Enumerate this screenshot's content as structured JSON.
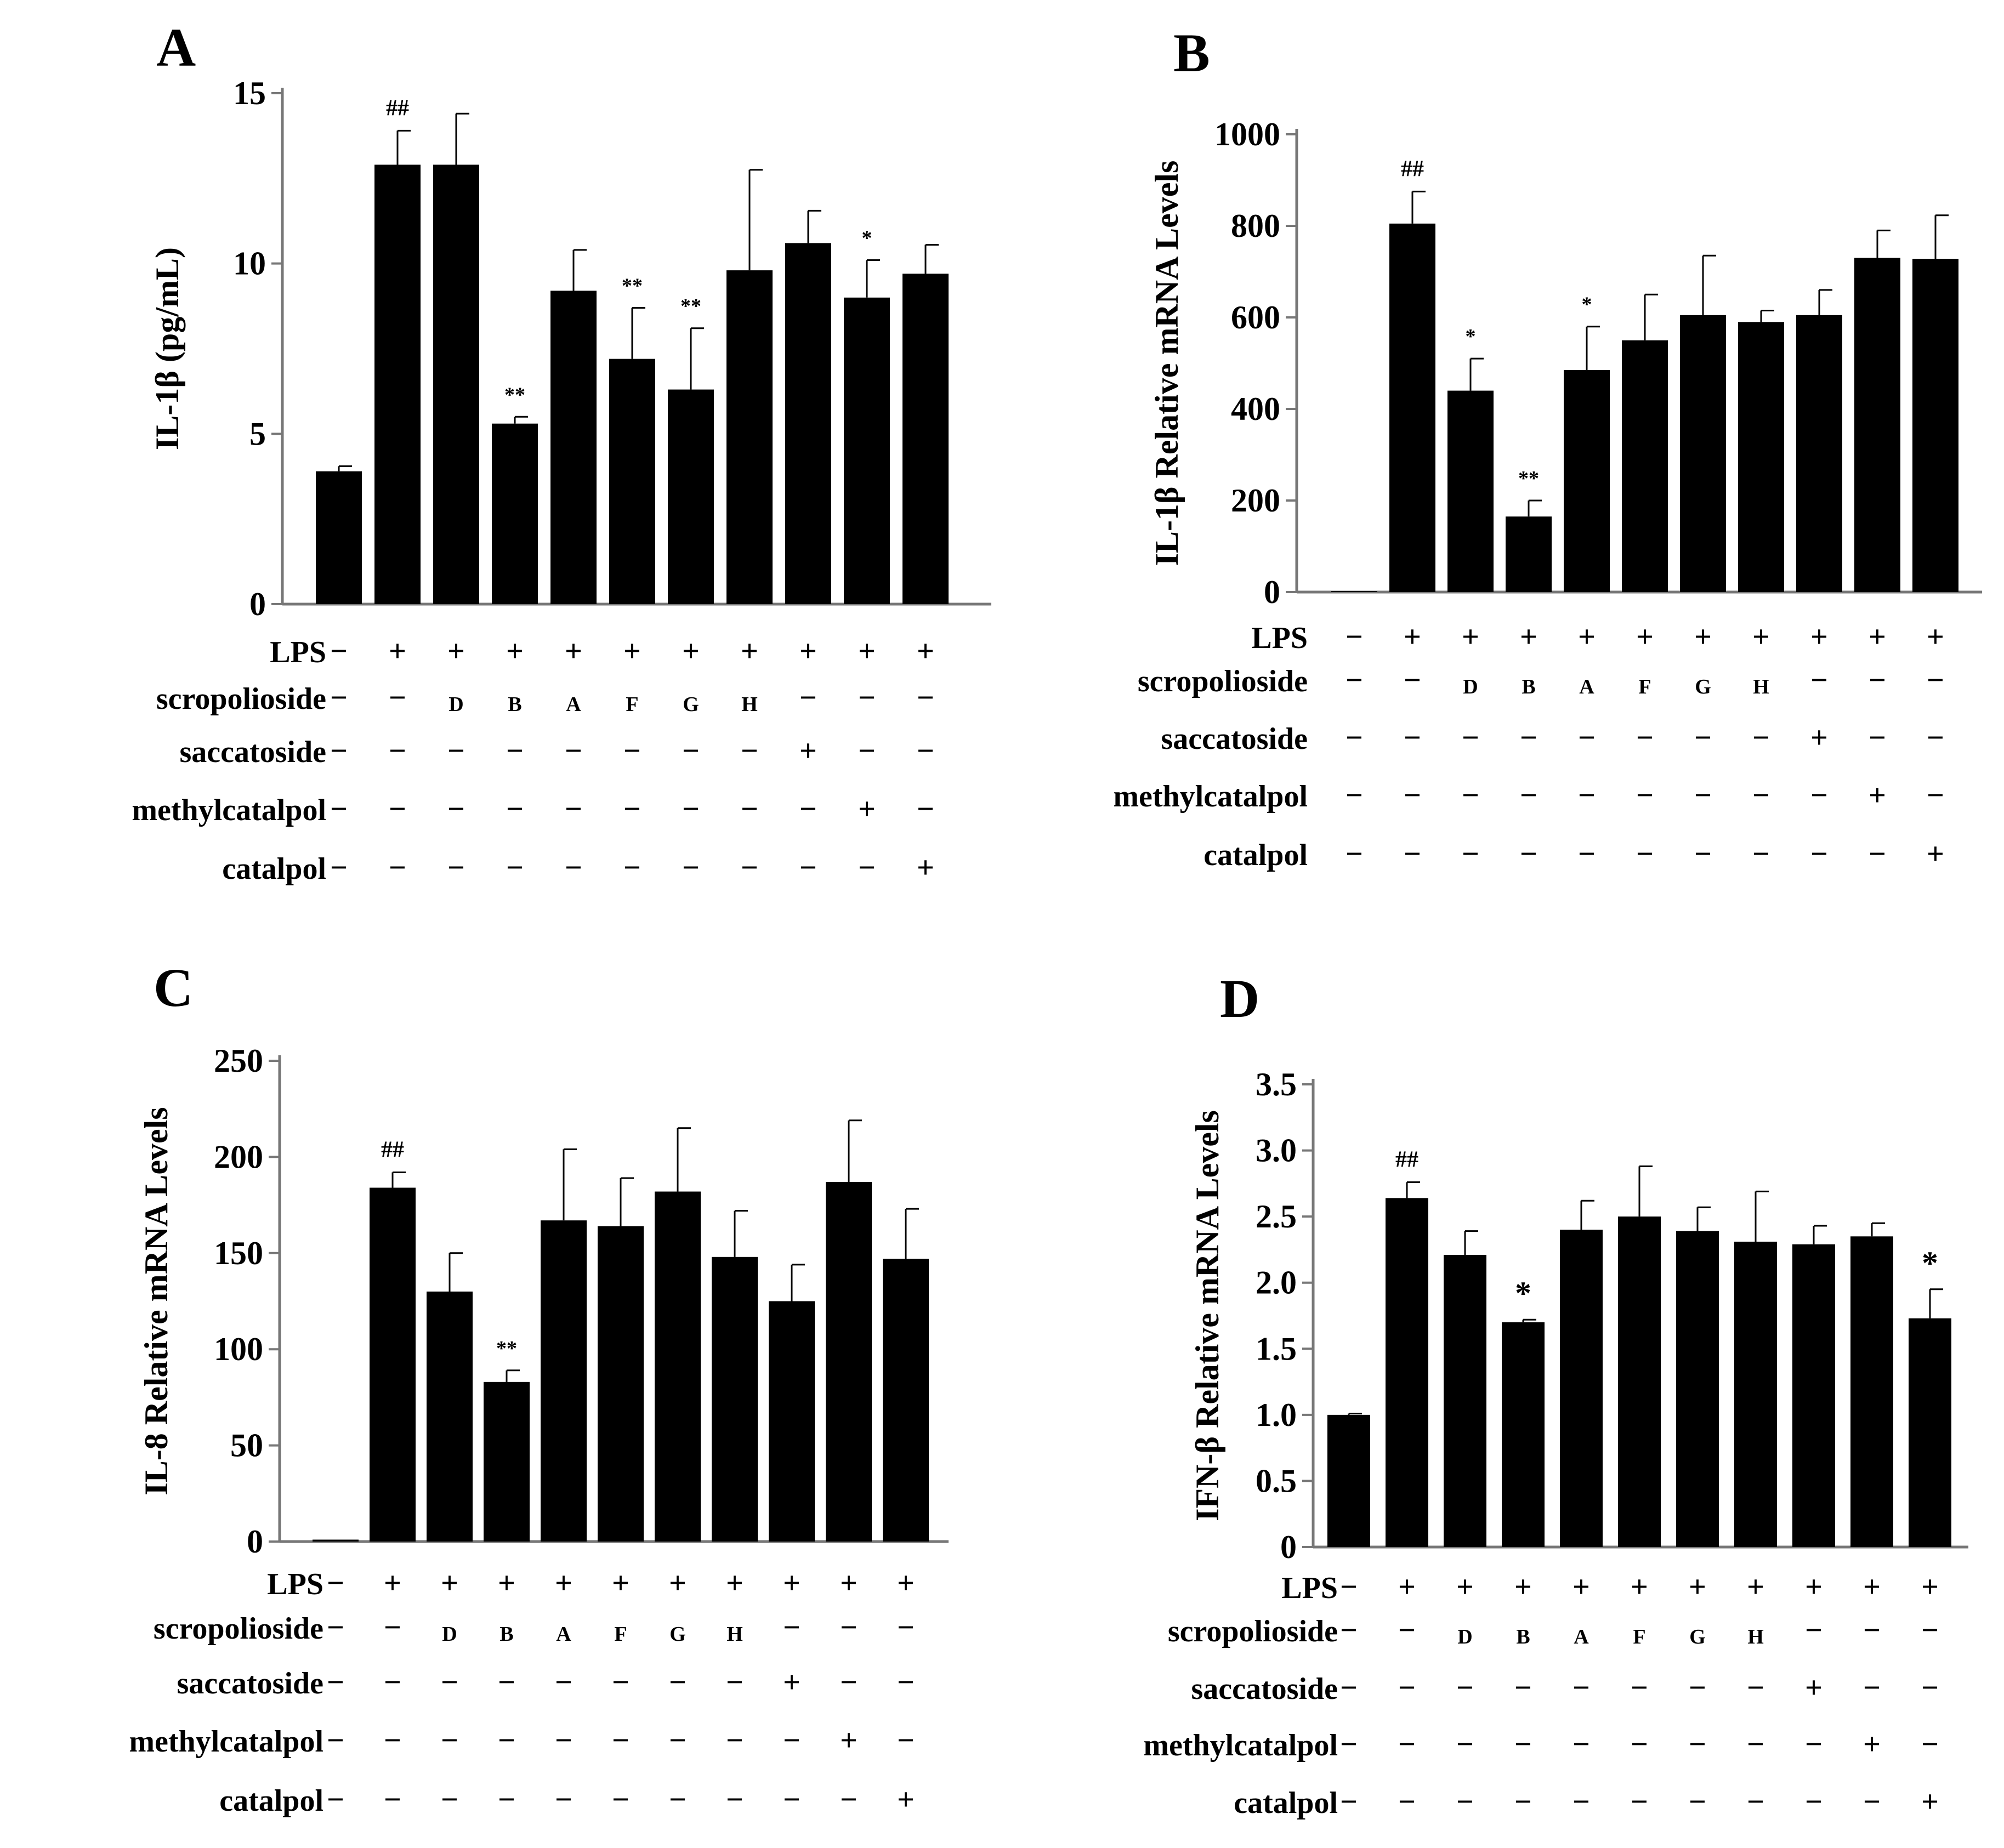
{
  "chart_data": [
    {
      "type": "bar",
      "panel": "A",
      "ylabel": "IL-1β (pg/mL)",
      "ylim": [
        0,
        15
      ],
      "yticks": [
        0,
        5,
        10,
        15
      ],
      "values": [
        3.9,
        12.9,
        12.9,
        5.3,
        9.2,
        7.2,
        6.3,
        9.8,
        10.6,
        9.0,
        9.7
      ],
      "errors": [
        0.15,
        1.0,
        1.5,
        0.2,
        1.2,
        1.5,
        1.8,
        2.95,
        0.95,
        1.1,
        0.85
      ],
      "annotations": [
        "",
        "##",
        "",
        "**",
        "",
        "**",
        "**",
        "",
        "",
        "*",
        ""
      ],
      "rows": [
        {
          "label": "LPS",
          "values": [
            "−",
            "+",
            "+",
            "+",
            "+",
            "+",
            "+",
            "+",
            "+",
            "+",
            "+"
          ]
        },
        {
          "label": "scropolioside",
          "values": [
            "−",
            "−",
            "D",
            "B",
            "A",
            "F",
            "G",
            "H",
            "−",
            "−",
            "−"
          ]
        },
        {
          "label": "saccatoside",
          "values": [
            "−",
            "−",
            "−",
            "−",
            "−",
            "−",
            "−",
            "−",
            "+",
            "−",
            "−"
          ]
        },
        {
          "label": "methylcatalpol",
          "values": [
            "−",
            "−",
            "−",
            "−",
            "−",
            "−",
            "−",
            "−",
            "−",
            "+",
            "−"
          ]
        },
        {
          "label": "catalpol",
          "values": [
            "−",
            "−",
            "−",
            "−",
            "−",
            "−",
            "−",
            "−",
            "−",
            "−",
            "+"
          ]
        }
      ]
    },
    {
      "type": "bar",
      "panel": "B",
      "ylabel": "IL-1β Relative mRNA Levels",
      "ylim": [
        0,
        1000
      ],
      "yticks": [
        0,
        200,
        400,
        600,
        800,
        1000
      ],
      "values": [
        0,
        805,
        440,
        165,
        485,
        550,
        605,
        590,
        605,
        730,
        728
      ],
      "errors": [
        0,
        70,
        70,
        35,
        95,
        100,
        130,
        25,
        55,
        60,
        95
      ],
      "annotations": [
        "",
        "##",
        "*",
        "**",
        "*",
        "",
        "",
        "",
        "",
        "",
        ""
      ],
      "rows": [
        {
          "label": "LPS",
          "values": [
            "−",
            "+",
            "+",
            "+",
            "+",
            "+",
            "+",
            "+",
            "+",
            "+",
            "+"
          ]
        },
        {
          "label": "scropolioside",
          "values": [
            "−",
            "−",
            "D",
            "B",
            "A",
            "F",
            "G",
            "H",
            "−",
            "−",
            "−"
          ]
        },
        {
          "label": "saccatoside",
          "values": [
            "−",
            "−",
            "−",
            "−",
            "−",
            "−",
            "−",
            "−",
            "+",
            "−",
            "−"
          ]
        },
        {
          "label": "methylcatalpol",
          "values": [
            "−",
            "−",
            "−",
            "−",
            "−",
            "−",
            "−",
            "−",
            "−",
            "+",
            "−"
          ]
        },
        {
          "label": "catalpol",
          "values": [
            "−",
            "−",
            "−",
            "−",
            "−",
            "−",
            "−",
            "−",
            "−",
            "−",
            "+"
          ]
        }
      ]
    },
    {
      "type": "bar",
      "panel": "C",
      "ylabel": "IL-8 Relative mRNA Levels",
      "ylim": [
        0,
        250
      ],
      "yticks": [
        0,
        50,
        100,
        150,
        200,
        250
      ],
      "values": [
        1,
        184,
        130,
        83,
        167,
        164,
        182,
        148,
        125,
        187,
        147
      ],
      "errors": [
        0,
        8,
        20,
        6,
        37,
        25,
        33,
        24,
        19,
        32,
        26
      ],
      "annotations": [
        "",
        "##",
        "",
        "**",
        "",
        "",
        "",
        "",
        "",
        "",
        ""
      ],
      "rows": [
        {
          "label": "LPS",
          "values": [
            "−",
            "+",
            "+",
            "+",
            "+",
            "+",
            "+",
            "+",
            "+",
            "+",
            "+"
          ]
        },
        {
          "label": "scropolioside",
          "values": [
            "−",
            "−",
            "D",
            "B",
            "A",
            "F",
            "G",
            "H",
            "−",
            "−",
            "−"
          ]
        },
        {
          "label": "saccatoside",
          "values": [
            "−",
            "−",
            "−",
            "−",
            "−",
            "−",
            "−",
            "−",
            "+",
            "−",
            "−"
          ]
        },
        {
          "label": "methylcatalpol",
          "values": [
            "−",
            "−",
            "−",
            "−",
            "−",
            "−",
            "−",
            "−",
            "−",
            "+",
            "−"
          ]
        },
        {
          "label": "catalpol",
          "values": [
            "−",
            "−",
            "−",
            "−",
            "−",
            "−",
            "−",
            "−",
            "−",
            "−",
            "+"
          ]
        }
      ]
    },
    {
      "type": "bar",
      "panel": "D",
      "ylabel": "IFN-β Relative mRNA Levels",
      "ylim": [
        0,
        3.5
      ],
      "yticks": [
        0,
        0.5,
        1.0,
        1.5,
        2.0,
        2.5,
        3.0,
        3.5
      ],
      "ytick_labels": [
        "0",
        "0.5",
        "1.0",
        "1.5",
        "2.0",
        "2.5",
        "3.0",
        "3.5"
      ],
      "values": [
        1.0,
        2.64,
        2.21,
        1.7,
        2.4,
        2.5,
        2.39,
        2.31,
        2.29,
        2.35,
        1.73
      ],
      "errors": [
        0.01,
        0.12,
        0.18,
        0.02,
        0.22,
        0.38,
        0.18,
        0.38,
        0.14,
        0.1,
        0.22
      ],
      "annotations": [
        "",
        "##",
        "",
        "*",
        "",
        "",
        "",
        "",
        "",
        "",
        "*"
      ],
      "rows": [
        {
          "label": "LPS",
          "values": [
            "−",
            "+",
            "+",
            "+",
            "+",
            "+",
            "+",
            "+",
            "+",
            "+",
            "+"
          ]
        },
        {
          "label": "scropolioside",
          "values": [
            "−",
            "−",
            "D",
            "B",
            "A",
            "F",
            "G",
            "H",
            "−",
            "−",
            "−"
          ]
        },
        {
          "label": "saccatoside",
          "values": [
            "−",
            "−",
            "−",
            "−",
            "−",
            "−",
            "−",
            "−",
            "+",
            "−",
            "−"
          ]
        },
        {
          "label": "methylcatalpol",
          "values": [
            "−",
            "−",
            "−",
            "−",
            "−",
            "−",
            "−",
            "−",
            "−",
            "+",
            "−"
          ]
        },
        {
          "label": "catalpol",
          "values": [
            "−",
            "−",
            "−",
            "−",
            "−",
            "−",
            "−",
            "−",
            "−",
            "−",
            "+"
          ]
        }
      ]
    }
  ]
}
